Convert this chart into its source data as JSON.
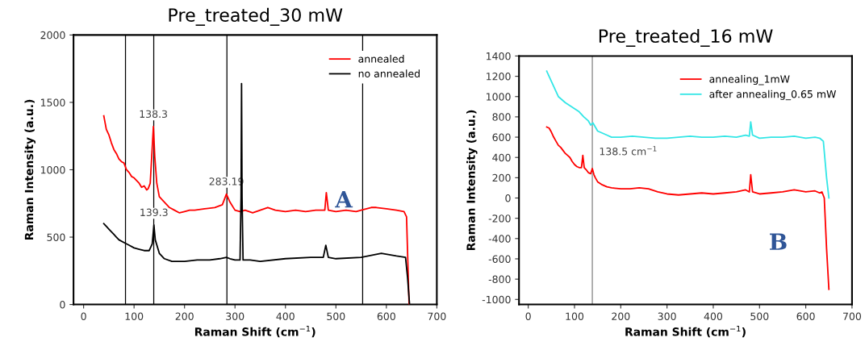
{
  "chart_data": [
    {
      "type": "line",
      "title": "Pre_treated_30 mW",
      "xlabel": "Raman Shift (cm$^{−1}$)",
      "ylabel": "Raman Intensity (a.u.)",
      "xlim": [
        -20,
        700
      ],
      "ylim": [
        0,
        2000
      ],
      "xticks": [
        0,
        100,
        200,
        300,
        400,
        500,
        600,
        700
      ],
      "yticks": [
        0,
        500,
        1000,
        1500,
        2000
      ],
      "grid": false,
      "legend": "top right",
      "marker": "none",
      "line_style": "solid",
      "series": [
        {
          "name": "annealed",
          "color": "#ff0000",
          "x": [
            40,
            45,
            50,
            55,
            60,
            65,
            70,
            75,
            80,
            85,
            90,
            95,
            100,
            105,
            110,
            115,
            120,
            125,
            128,
            132,
            135,
            138.3,
            141,
            145,
            150,
            160,
            170,
            180,
            190,
            200,
            210,
            220,
            240,
            260,
            275,
            283,
            290,
            300,
            310,
            320,
            335,
            350,
            365,
            380,
            400,
            420,
            440,
            460,
            470,
            478,
            481,
            485,
            500,
            520,
            540,
            550,
            570,
            580,
            600,
            620,
            635,
            640,
            645
          ],
          "values": [
            1400,
            1300,
            1260,
            1200,
            1150,
            1120,
            1080,
            1060,
            1050,
            1000,
            980,
            950,
            940,
            920,
            900,
            870,
            880,
            850,
            860,
            900,
            1100,
            1320,
            1100,
            900,
            800,
            760,
            720,
            700,
            680,
            690,
            700,
            700,
            710,
            720,
            740,
            820,
            760,
            700,
            690,
            700,
            680,
            700,
            720,
            700,
            690,
            700,
            690,
            700,
            700,
            700,
            830,
            700,
            690,
            700,
            690,
            700,
            720,
            720,
            710,
            700,
            690,
            650,
            0
          ]
        },
        {
          "name": "no annealed",
          "color": "#000000",
          "x": [
            40,
            45,
            50,
            55,
            60,
            65,
            70,
            80,
            90,
            100,
            110,
            120,
            130,
            136,
            139.3,
            142,
            150,
            160,
            175,
            200,
            225,
            250,
            270,
            283,
            290,
            300,
            310,
            312,
            313,
            314,
            316,
            330,
            350,
            400,
            450,
            475,
            480,
            485,
            500,
            550,
            590,
            620,
            638,
            642,
            646
          ],
          "values": [
            600,
            580,
            560,
            540,
            520,
            500,
            480,
            460,
            440,
            420,
            410,
            400,
            400,
            450,
            590,
            480,
            380,
            340,
            320,
            320,
            330,
            330,
            340,
            350,
            340,
            330,
            330,
            800,
            1640,
            800,
            330,
            330,
            320,
            340,
            350,
            350,
            440,
            350,
            340,
            350,
            380,
            360,
            350,
            200,
            0
          ]
        }
      ],
      "ref_lines": [
        {
          "axis": "x",
          "value": 83,
          "color": "#000000"
        },
        {
          "axis": "x",
          "value": 139,
          "color": "#000000"
        },
        {
          "axis": "x",
          "value": 284,
          "color": "#000000"
        },
        {
          "axis": "x",
          "value": 553,
          "color": "#000000"
        }
      ],
      "annotations": [
        {
          "text": "138.3",
          "x": 138.3,
          "y": 1320
        },
        {
          "text": "283.19",
          "x": 283,
          "y": 820
        },
        {
          "text": "139.3",
          "x": 139.3,
          "y": 590
        },
        "A"
      ]
    },
    {
      "type": "line",
      "title": "Pre_treated_16 mW",
      "xlabel": "Raman Shift (cm$^{−1}$)",
      "ylabel": "Raman Intensity (a.u.)",
      "xlim": [
        -20,
        700
      ],
      "ylim": [
        -1050,
        1400
      ],
      "xticks": [
        0,
        100,
        200,
        300,
        400,
        500,
        600,
        700
      ],
      "yticks": [
        -1000,
        -800,
        -600,
        -400,
        -200,
        0,
        200,
        400,
        600,
        800,
        1000,
        1200,
        1400
      ],
      "grid": false,
      "legend": "top right",
      "marker": "none",
      "line_style": "solid",
      "series": [
        {
          "name": "annealing_1mW",
          "color": "#ff0000",
          "x": [
            40,
            45,
            50,
            55,
            60,
            65,
            70,
            75,
            80,
            85,
            90,
            95,
            100,
            105,
            110,
            115,
            118,
            121,
            125,
            130,
            135,
            138.5,
            142,
            145,
            150,
            160,
            170,
            180,
            200,
            220,
            240,
            260,
            280,
            300,
            325,
            350,
            375,
            400,
            425,
            450,
            470,
            478,
            481,
            485,
            500,
            525,
            550,
            575,
            600,
            620,
            630,
            635,
            640,
            645,
            650
          ],
          "values": [
            700,
            690,
            650,
            600,
            560,
            520,
            500,
            470,
            440,
            420,
            400,
            360,
            330,
            310,
            300,
            300,
            420,
            300,
            280,
            250,
            240,
            290,
            230,
            200,
            160,
            130,
            110,
            100,
            90,
            90,
            100,
            90,
            60,
            40,
            30,
            40,
            50,
            40,
            50,
            60,
            80,
            60,
            230,
            60,
            40,
            50,
            60,
            80,
            60,
            70,
            50,
            60,
            0,
            -500,
            -900
          ]
        },
        {
          "name": "after annealing_0.65 mW",
          "color": "#33e6e6",
          "x": [
            40,
            45,
            50,
            55,
            60,
            65,
            70,
            80,
            90,
            100,
            110,
            120,
            130,
            135,
            140,
            145,
            150,
            160,
            170,
            180,
            200,
            225,
            250,
            275,
            300,
            325,
            350,
            375,
            400,
            425,
            450,
            470,
            478,
            481,
            485,
            500,
            525,
            550,
            575,
            600,
            620,
            630,
            638,
            645,
            650
          ],
          "values": [
            1250,
            1200,
            1150,
            1100,
            1050,
            1000,
            980,
            940,
            910,
            880,
            850,
            800,
            760,
            720,
            740,
            700,
            660,
            640,
            620,
            600,
            600,
            610,
            600,
            590,
            590,
            600,
            610,
            600,
            600,
            610,
            600,
            620,
            610,
            750,
            620,
            590,
            600,
            600,
            610,
            590,
            600,
            590,
            560,
            200,
            0
          ]
        }
      ],
      "ref_lines": [
        {
          "axis": "x",
          "value": 138.5,
          "color": "#808080"
        }
      ],
      "annotations": [
        {
          "text": "138.5 cm$^{−1}$",
          "x": 138.5,
          "y": 290
        },
        "B"
      ]
    }
  ]
}
